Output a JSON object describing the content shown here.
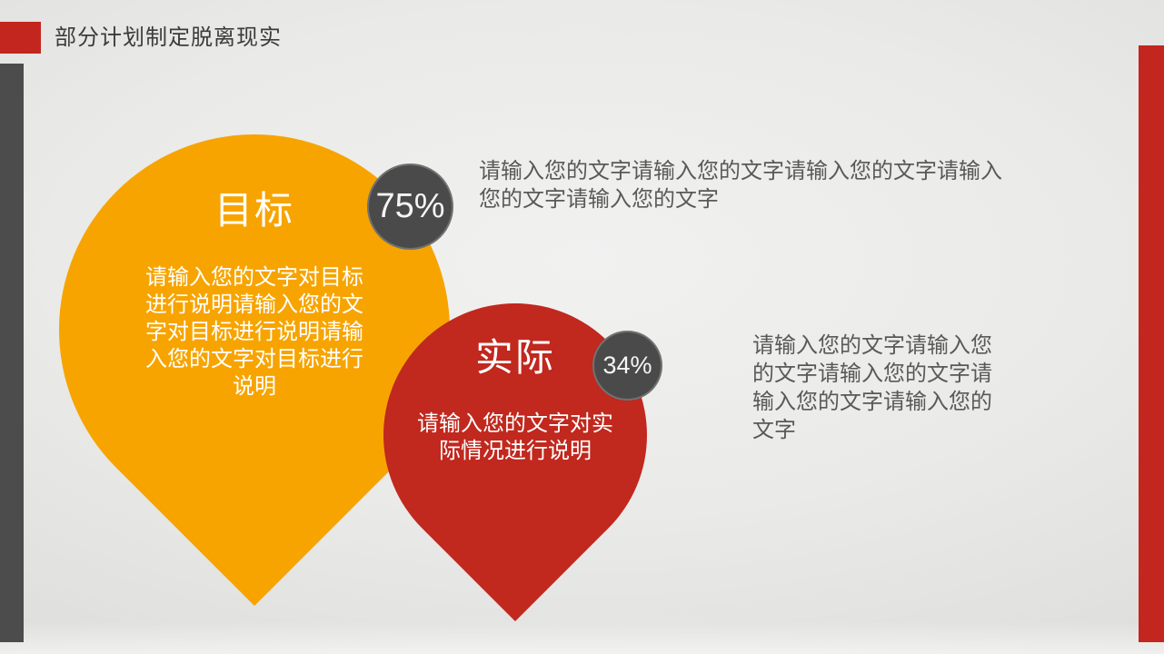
{
  "slide": {
    "title": "部分计划制定脱离现实",
    "colors": {
      "orange": "#F7A400",
      "red": "#C1281E",
      "accent_red": "#C3261E",
      "dark": "#4A4A4A",
      "bar_dark": "#4C4C4C"
    }
  },
  "pins": {
    "goal": {
      "label": "目标",
      "percent": "75%",
      "description_lines": [
        "请输入您的文字对目标",
        "进行说明请输入您的文",
        "字对目标进行说明请输",
        "入您的文字对目标进行",
        "说明"
      ]
    },
    "actual": {
      "label": "实际",
      "percent": "34%",
      "description_lines": [
        "请输入您的文字对实",
        "际情况进行说明"
      ]
    }
  },
  "paragraphs": {
    "top": {
      "lines": [
        "请输入您的文字请输入您的文字请输入您的文字请输入",
        "您的文字请输入您的文字"
      ]
    },
    "bottom": {
      "lines": [
        "请输入您的文字请输入您",
        "的文字请输入您的文字请",
        "输入您的文字请输入您的",
        "文字"
      ]
    }
  }
}
